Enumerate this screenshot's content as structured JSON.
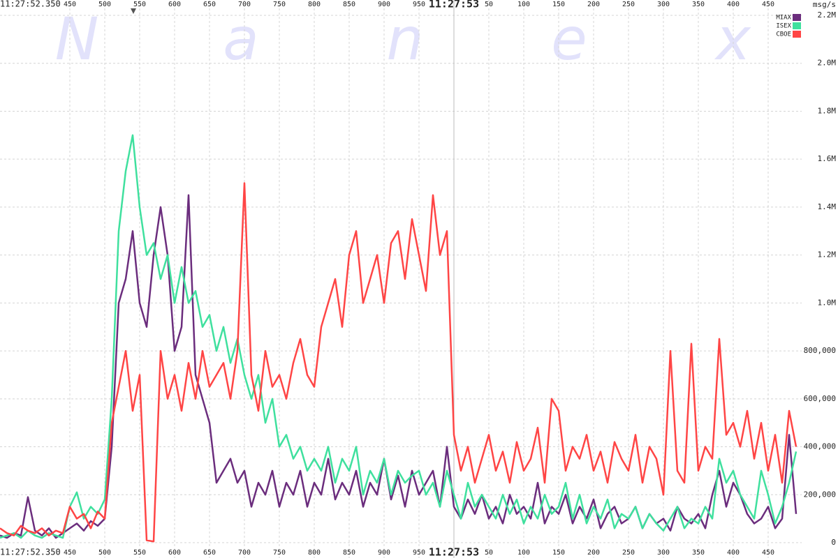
{
  "chart_data": {
    "type": "line",
    "y_label": "msg/s",
    "watermark": [
      "N",
      "a",
      "n",
      "e",
      "x"
    ],
    "grid": true,
    "legend": "top-right",
    "xlim": [
      350,
      1498
    ],
    "xticks": [
      {
        "value": 350,
        "label": "11:27:52.350"
      },
      450,
      500,
      550,
      600,
      650,
      700,
      750,
      800,
      850,
      900,
      950,
      {
        "value": 1000,
        "label": "11:27:53"
      },
      {
        "value": 1050,
        "label": "50"
      },
      {
        "value": 1100,
        "label": "100"
      },
      {
        "value": 1150,
        "label": "150"
      },
      {
        "value": 1200,
        "label": "200"
      },
      {
        "value": 1250,
        "label": "250"
      },
      {
        "value": 1300,
        "label": "300"
      },
      {
        "value": 1350,
        "label": "350"
      },
      {
        "value": 1400,
        "label": "400"
      },
      {
        "value": 1450,
        "label": "450"
      }
    ],
    "ylim": [
      0,
      2200000
    ],
    "yticks": [
      0,
      {
        "value": 200000,
        "label": "200,000"
      },
      {
        "value": 400000,
        "label": "400,000"
      },
      {
        "value": 600000,
        "label": "600,000"
      },
      {
        "value": 800000,
        "label": "800,000"
      },
      {
        "value": 1000000,
        "label": "1.0M"
      },
      {
        "value": 1200000,
        "label": "1.2M"
      },
      {
        "value": 1400000,
        "label": "1.4M"
      },
      {
        "value": 1600000,
        "label": "1.6M"
      },
      {
        "value": 1800000,
        "label": "1.8M"
      },
      {
        "value": 2000000,
        "label": "2.0M"
      },
      {
        "value": 2200000,
        "label": "2.2M"
      }
    ],
    "x": [
      350,
      360,
      370,
      380,
      390,
      400,
      410,
      420,
      430,
      440,
      450,
      460,
      470,
      480,
      490,
      500,
      510,
      520,
      530,
      540,
      550,
      560,
      570,
      580,
      590,
      600,
      610,
      620,
      630,
      640,
      650,
      660,
      670,
      680,
      690,
      700,
      710,
      720,
      730,
      740,
      750,
      760,
      770,
      780,
      790,
      800,
      810,
      820,
      830,
      840,
      850,
      860,
      870,
      880,
      890,
      900,
      910,
      920,
      930,
      940,
      950,
      960,
      970,
      980,
      990,
      1000,
      1010,
      1020,
      1030,
      1040,
      1050,
      1060,
      1070,
      1080,
      1090,
      1100,
      1110,
      1120,
      1130,
      1140,
      1150,
      1160,
      1170,
      1180,
      1190,
      1200,
      1210,
      1220,
      1230,
      1240,
      1250,
      1260,
      1270,
      1280,
      1290,
      1300,
      1310,
      1320,
      1330,
      1340,
      1350,
      1360,
      1370,
      1380,
      1390,
      1400,
      1410,
      1420,
      1430,
      1440,
      1450,
      1460,
      1470,
      1480,
      1490
    ],
    "series": [
      {
        "name": "MIAX",
        "color": "#6b2d7d",
        "values": [
          30000,
          20000,
          40000,
          30000,
          190000,
          50000,
          30000,
          60000,
          20000,
          40000,
          60000,
          80000,
          50000,
          90000,
          70000,
          100000,
          400000,
          1000000,
          1100000,
          1300000,
          1000000,
          900000,
          1200000,
          1400000,
          1200000,
          800000,
          900000,
          1450000,
          700000,
          600000,
          500000,
          250000,
          300000,
          350000,
          250000,
          300000,
          150000,
          250000,
          200000,
          300000,
          150000,
          250000,
          200000,
          300000,
          150000,
          250000,
          200000,
          350000,
          180000,
          250000,
          200000,
          300000,
          150000,
          250000,
          200000,
          350000,
          180000,
          280000,
          150000,
          300000,
          200000,
          250000,
          300000,
          150000,
          400000,
          150000,
          100000,
          180000,
          120000,
          200000,
          100000,
          150000,
          80000,
          200000,
          120000,
          150000,
          100000,
          250000,
          80000,
          150000,
          120000,
          200000,
          80000,
          150000,
          100000,
          180000,
          60000,
          120000,
          150000,
          80000,
          100000,
          150000,
          60000,
          120000,
          80000,
          100000,
          50000,
          150000,
          100000,
          80000,
          120000,
          60000,
          200000,
          300000,
          150000,
          250000,
          200000,
          120000,
          80000,
          100000,
          150000,
          60000,
          100000,
          450000,
          120000
        ]
      },
      {
        "name": "ISEX",
        "color": "#3fe09e",
        "values": [
          20000,
          30000,
          40000,
          20000,
          50000,
          30000,
          20000,
          40000,
          30000,
          20000,
          150000,
          210000,
          100000,
          150000,
          120000,
          180000,
          600000,
          1300000,
          1550000,
          1700000,
          1400000,
          1200000,
          1250000,
          1100000,
          1200000,
          1000000,
          1150000,
          1000000,
          1050000,
          900000,
          950000,
          800000,
          900000,
          750000,
          850000,
          700000,
          600000,
          700000,
          500000,
          600000,
          400000,
          450000,
          350000,
          400000,
          300000,
          350000,
          300000,
          400000,
          250000,
          350000,
          300000,
          400000,
          200000,
          300000,
          250000,
          350000,
          200000,
          300000,
          250000,
          280000,
          300000,
          200000,
          250000,
          150000,
          300000,
          200000,
          100000,
          250000,
          150000,
          200000,
          150000,
          100000,
          200000,
          120000,
          180000,
          80000,
          150000,
          100000,
          200000,
          120000,
          150000,
          250000,
          100000,
          200000,
          80000,
          150000,
          100000,
          180000,
          60000,
          120000,
          100000,
          150000,
          60000,
          120000,
          80000,
          50000,
          100000,
          150000,
          60000,
          100000,
          80000,
          150000,
          100000,
          350000,
          250000,
          300000,
          200000,
          150000,
          100000,
          300000,
          200000,
          80000,
          150000,
          250000,
          380000
        ]
      },
      {
        "name": "CBOE",
        "color": "#ff4545",
        "values": [
          60000,
          40000,
          30000,
          70000,
          50000,
          40000,
          60000,
          30000,
          50000,
          40000,
          150000,
          100000,
          120000,
          60000,
          130000,
          100000,
          500000,
          650000,
          800000,
          550000,
          700000,
          10000,
          5000,
          800000,
          600000,
          700000,
          550000,
          750000,
          600000,
          800000,
          650000,
          700000,
          750000,
          600000,
          800000,
          1500000,
          700000,
          550000,
          800000,
          650000,
          700000,
          600000,
          750000,
          850000,
          700000,
          650000,
          900000,
          1000000,
          1100000,
          900000,
          1200000,
          1300000,
          1000000,
          1100000,
          1200000,
          1000000,
          1250000,
          1300000,
          1100000,
          1350000,
          1200000,
          1050000,
          1450000,
          1200000,
          1300000,
          450000,
          300000,
          400000,
          250000,
          350000,
          450000,
          300000,
          380000,
          250000,
          420000,
          300000,
          350000,
          480000,
          250000,
          600000,
          550000,
          300000,
          400000,
          350000,
          450000,
          300000,
          380000,
          250000,
          420000,
          350000,
          300000,
          450000,
          250000,
          400000,
          350000,
          200000,
          800000,
          300000,
          250000,
          830000,
          300000,
          400000,
          350000,
          850000,
          450000,
          500000,
          400000,
          550000,
          350000,
          500000,
          300000,
          450000,
          250000,
          550000,
          400000
        ]
      }
    ]
  }
}
